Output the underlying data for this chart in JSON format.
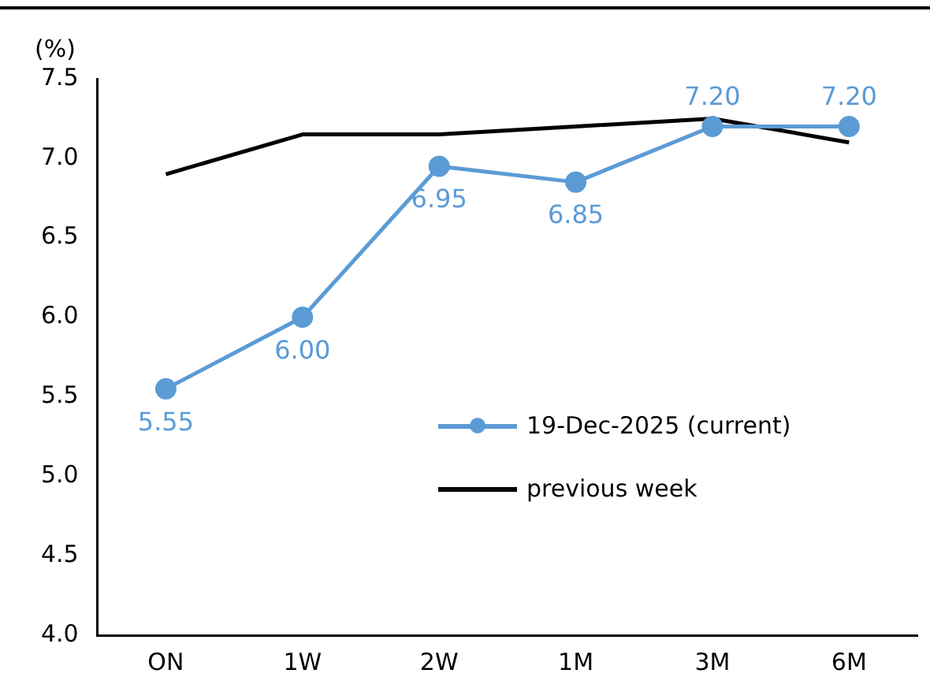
{
  "chart_data": {
    "type": "line",
    "ylabel": "(%)",
    "categories": [
      "ON",
      "1W",
      "2W",
      "1M",
      "3M",
      "6M"
    ],
    "series": [
      {
        "name": "19-Dec-2025 (current)",
        "color": "#5b9bd5",
        "marker": "circle",
        "values": [
          5.55,
          6.0,
          6.95,
          6.85,
          7.2,
          7.2
        ],
        "value_labels": [
          "5.55",
          "6.00",
          "6.95",
          "6.85",
          "7.20",
          "7.20"
        ]
      },
      {
        "name": "previous week",
        "color": "#000000",
        "marker": "none",
        "values": [
          6.9,
          7.15,
          7.15,
          7.2,
          7.25,
          7.1
        ]
      }
    ],
    "ylim": [
      4.0,
      7.5
    ],
    "yticks": [
      {
        "value": 4.0,
        "label": "4.0"
      },
      {
        "value": 4.5,
        "label": "4.5"
      },
      {
        "value": 5.0,
        "label": "5.0"
      },
      {
        "value": 5.5,
        "label": "5.5"
      },
      {
        "value": 6.0,
        "label": "6.0"
      },
      {
        "value": 6.5,
        "label": "6.5"
      },
      {
        "value": 7.0,
        "label": "7.0"
      },
      {
        "value": 7.5,
        "label": "7.5"
      }
    ],
    "grid": false,
    "legend": "bottom right"
  }
}
